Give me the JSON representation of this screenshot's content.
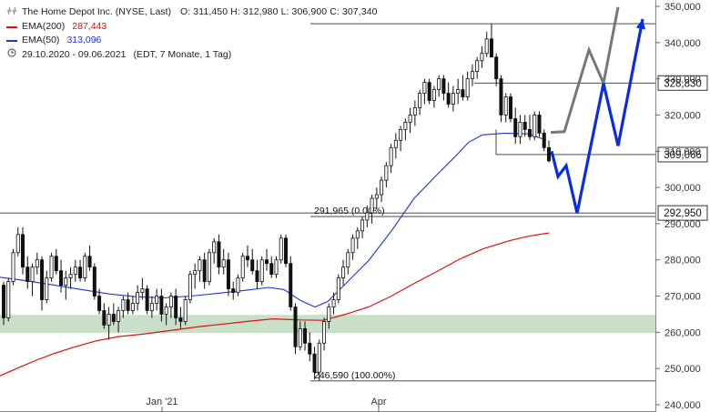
{
  "legend": {
    "title": "The Home Depot Inc. (NYSE, Last)",
    "ohlc": "O: 311,450  H: 312,980  L: 306,900  C: 307,340",
    "ema200_label": "EMA(200)",
    "ema200_value": "287,443",
    "ema50_label": "EMA(50)",
    "ema50_value": "313,096",
    "period": "29.10.2020 - 09.06.2021",
    "period_note": "(EDT, 7 Monate, 1 Tag)"
  },
  "colors": {
    "ema200": "#dd1111",
    "ema50": "#1a35d8",
    "candle_up": "#ffffff",
    "candle_down": "#111111",
    "support_zone": "#c8dfc8",
    "projection_gray": "#777777",
    "projection_blue": "#0a2ce6"
  },
  "chart_data": {
    "type": "candlestick",
    "y_ticks": [
      "240,000",
      "250,000",
      "260,000",
      "270,000",
      "280,000",
      "290,000",
      "300,000",
      "310,000",
      "320,000",
      "330,000",
      "340,000",
      "350,000"
    ],
    "y_tick_values": [
      240,
      250,
      260,
      270,
      280,
      290,
      300,
      310,
      320,
      330,
      340,
      350
    ],
    "ylim": [
      239.5,
      351
    ],
    "x_tick_labels": [
      "Jan '21",
      "Apr"
    ],
    "levels": [
      {
        "value": 345.2,
        "label": ""
      },
      {
        "value": 328.83,
        "label": "328,830"
      },
      {
        "value": 309.066,
        "label": "309,066"
      },
      {
        "value": 292.95,
        "label": "292,950"
      },
      {
        "value": 291.965,
        "label": "291,965 (0.00%)"
      },
      {
        "value": 246.59,
        "label": "246,590 (100.00%)"
      }
    ],
    "support_zone": [
      259.8,
      264.8
    ],
    "candles_ohlc": [
      [
        273,
        274,
        262,
        264
      ],
      [
        264,
        275,
        263,
        274
      ],
      [
        274,
        283,
        273,
        282
      ],
      [
        282,
        289,
        281,
        287
      ],
      [
        287,
        289,
        276,
        278
      ],
      [
        278,
        281,
        272,
        274
      ],
      [
        274,
        279,
        270,
        278
      ],
      [
        278,
        282,
        276,
        280
      ],
      [
        280,
        281,
        266,
        269
      ],
      [
        269,
        277,
        268,
        275
      ],
      [
        275,
        282,
        274,
        281
      ],
      [
        281,
        283,
        276,
        277
      ],
      [
        277,
        280,
        271,
        273
      ],
      [
        273,
        277,
        269,
        275
      ],
      [
        275,
        278,
        272,
        276
      ],
      [
        276,
        280,
        274,
        278
      ],
      [
        278,
        280,
        274,
        275
      ],
      [
        275,
        282,
        274,
        281
      ],
      [
        281,
        284,
        277,
        278
      ],
      [
        278,
        279,
        269,
        270
      ],
      [
        270,
        272,
        265,
        266
      ],
      [
        266,
        268,
        261,
        262
      ],
      [
        262,
        267,
        258,
        265
      ],
      [
        265,
        268,
        262,
        263
      ],
      [
        263,
        267,
        260,
        266
      ],
      [
        266,
        270,
        264,
        269
      ],
      [
        269,
        271,
        265,
        266
      ],
      [
        266,
        270,
        265,
        268
      ],
      [
        268,
        273,
        266,
        271
      ],
      [
        271,
        275,
        269,
        272
      ],
      [
        272,
        273,
        265,
        266
      ],
      [
        266,
        270,
        264,
        268
      ],
      [
        268,
        272,
        266,
        270
      ],
      [
        270,
        272,
        263,
        265
      ],
      [
        265,
        268,
        262,
        267
      ],
      [
        267,
        271,
        264,
        270
      ],
      [
        270,
        272,
        262,
        264
      ],
      [
        264,
        267,
        261,
        263
      ],
      [
        263,
        270,
        262,
        269
      ],
      [
        269,
        277,
        268,
        276
      ],
      [
        276,
        279,
        272,
        277
      ],
      [
        277,
        281,
        274,
        280
      ],
      [
        280,
        282,
        272,
        274
      ],
      [
        274,
        283,
        273,
        282
      ],
      [
        282,
        286,
        279,
        285
      ],
      [
        285,
        287,
        276,
        278
      ],
      [
        278,
        283,
        276,
        280
      ],
      [
        280,
        282,
        270,
        272
      ],
      [
        272,
        274,
        269,
        271
      ],
      [
        271,
        276,
        270,
        275
      ],
      [
        275,
        282,
        274,
        281
      ],
      [
        281,
        284,
        278,
        280
      ],
      [
        280,
        283,
        276,
        277
      ],
      [
        277,
        280,
        272,
        274
      ],
      [
        274,
        281,
        273,
        280
      ],
      [
        280,
        283,
        277,
        279
      ],
      [
        279,
        281,
        275,
        276
      ],
      [
        276,
        281,
        275,
        280
      ],
      [
        280,
        287,
        279,
        286
      ],
      [
        286,
        287,
        278,
        279
      ],
      [
        279,
        281,
        266,
        267
      ],
      [
        267,
        268,
        254,
        256
      ],
      [
        256,
        263,
        255,
        261
      ],
      [
        261,
        263,
        255,
        257
      ],
      [
        257,
        260,
        252,
        254
      ],
      [
        254,
        256,
        247,
        249
      ],
      [
        249,
        258,
        246.59,
        257
      ],
      [
        257,
        264,
        255,
        263
      ],
      [
        263,
        268,
        261,
        267
      ],
      [
        267,
        271,
        265,
        269
      ],
      [
        269,
        276,
        268,
        275
      ],
      [
        275,
        280,
        273,
        278
      ],
      [
        278,
        283,
        276,
        282
      ],
      [
        282,
        287,
        280,
        286
      ],
      [
        286,
        289,
        283,
        288
      ],
      [
        288,
        292,
        286,
        291
      ],
      [
        291,
        295,
        289,
        293
      ],
      [
        293,
        298,
        290,
        297
      ],
      [
        297,
        300,
        294,
        298
      ],
      [
        298,
        303,
        296,
        302
      ],
      [
        302,
        307,
        300,
        306
      ],
      [
        306,
        312,
        304,
        311
      ],
      [
        311,
        315,
        308,
        313
      ],
      [
        313,
        317,
        310,
        316
      ],
      [
        316,
        319,
        313,
        318
      ],
      [
        318,
        322,
        315,
        320
      ],
      [
        320,
        324,
        317,
        322
      ],
      [
        322,
        327,
        320,
        326
      ],
      [
        326,
        330,
        323,
        329
      ],
      [
        329,
        330,
        323,
        324
      ],
      [
        324,
        328,
        322,
        327
      ],
      [
        327,
        331,
        325,
        330
      ],
      [
        330,
        331,
        324,
        326
      ],
      [
        326,
        329,
        322,
        323
      ],
      [
        323,
        328,
        321,
        326
      ],
      [
        326,
        330,
        323,
        327
      ],
      [
        327,
        331,
        324,
        325
      ],
      [
        325,
        332,
        324,
        330
      ],
      [
        330,
        334,
        328,
        332
      ],
      [
        332,
        336,
        330,
        335
      ],
      [
        335,
        339,
        333,
        337
      ],
      [
        337,
        343,
        336,
        341
      ],
      [
        341,
        345.2,
        338,
        336
      ],
      [
        336,
        337,
        328,
        330
      ],
      [
        330,
        331,
        318,
        320
      ],
      [
        320,
        326,
        318,
        325
      ],
      [
        325,
        326,
        318,
        319
      ],
      [
        319,
        322,
        312,
        314
      ],
      [
        314,
        320,
        312,
        318
      ],
      [
        318,
        320,
        314,
        316
      ],
      [
        316,
        320,
        313,
        314
      ],
      [
        314,
        321,
        313,
        320
      ],
      [
        320,
        321,
        314,
        315
      ],
      [
        315,
        316,
        310,
        311
      ],
      [
        311,
        312.98,
        306.9,
        307.34
      ]
    ],
    "ema200": [
      [
        0,
        248.0
      ],
      [
        20,
        250.2
      ],
      [
        40,
        252.3
      ],
      [
        60,
        254.2
      ],
      [
        80,
        255.8
      ],
      [
        105,
        257.6
      ],
      [
        130,
        258.8
      ],
      [
        160,
        259.6
      ],
      [
        190,
        260.6
      ],
      [
        220,
        261.6
      ],
      [
        250,
        262.4
      ],
      [
        275,
        263.1
      ],
      [
        300,
        263.7
      ],
      [
        330,
        263.4
      ],
      [
        355,
        263.3
      ],
      [
        380,
        265.0
      ],
      [
        405,
        267.0
      ],
      [
        430,
        270.0
      ],
      [
        455,
        273.5
      ],
      [
        480,
        276.8
      ],
      [
        505,
        280.2
      ],
      [
        530,
        283.0
      ],
      [
        560,
        285.3
      ],
      [
        580,
        286.5
      ],
      [
        603,
        287.44
      ]
    ],
    "ema50": [
      [
        0,
        275.2
      ],
      [
        30,
        274.2
      ],
      [
        60,
        273.0
      ],
      [
        90,
        271.8
      ],
      [
        120,
        270.6
      ],
      [
        150,
        269.8
      ],
      [
        180,
        269.5
      ],
      [
        210,
        270.0
      ],
      [
        240,
        270.8
      ],
      [
        270,
        271.6
      ],
      [
        295,
        272.4
      ],
      [
        312,
        271.8
      ],
      [
        330,
        268.8
      ],
      [
        346,
        267.0
      ],
      [
        360,
        268.5
      ],
      [
        380,
        273.5
      ],
      [
        405,
        279.8
      ],
      [
        430,
        288.0
      ],
      [
        455,
        297.0
      ],
      [
        480,
        303.5
      ],
      [
        500,
        308.5
      ],
      [
        515,
        312.5
      ],
      [
        530,
        314.5
      ],
      [
        555,
        315.0
      ],
      [
        580,
        314.8
      ],
      [
        600,
        313.1
      ]
    ],
    "projection_gray": [
      [
        605,
        315.2
      ],
      [
        620,
        315.4
      ],
      [
        647,
        338.0
      ],
      [
        663,
        328.8
      ],
      [
        679,
        349.8
      ]
    ],
    "projection_blue": [
      [
        606,
        310.0
      ],
      [
        613,
        303.0
      ],
      [
        622,
        306.0
      ],
      [
        634,
        292.9
      ],
      [
        663,
        328.7
      ],
      [
        679,
        311.5
      ],
      [
        706,
        346.5
      ]
    ]
  }
}
